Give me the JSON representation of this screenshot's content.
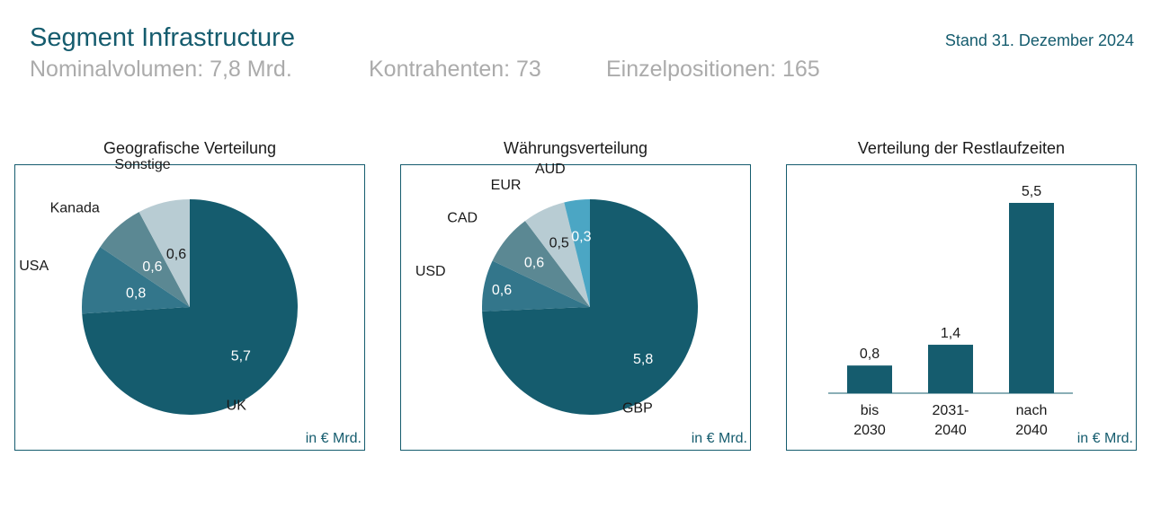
{
  "header": {
    "title": "Segment Infrastructure",
    "stand": "Stand 31. Dezember 2024",
    "nominal": "Nominalvolumen: 7,8 Mrd.",
    "kontrahenten": "Kontrahenten: 73",
    "einzelpositionen": "Einzelpositionen: 165"
  },
  "colors": {
    "accent": "#155c6e"
  },
  "chart_data": [
    {
      "type": "pie",
      "title": "Geografische Verteilung",
      "unit": "in € Mrd.",
      "slices": [
        {
          "label": "UK",
          "value": 5.7,
          "value_label": "5,7",
          "color": "#155c6e"
        },
        {
          "label": "USA",
          "value": 0.8,
          "value_label": "0,8",
          "color": "#33768b"
        },
        {
          "label": "Kanada",
          "value": 0.6,
          "value_label": "0,6",
          "color": "#5b8893"
        },
        {
          "label": "Sonstige",
          "value": 0.6,
          "value_label": "0,6",
          "color": "#b8ccd3"
        }
      ]
    },
    {
      "type": "pie",
      "title": "Währungsverteilung",
      "unit": "in € Mrd.",
      "slices": [
        {
          "label": "GBP",
          "value": 5.8,
          "value_label": "5,8",
          "color": "#155c6e"
        },
        {
          "label": "USD",
          "value": 0.6,
          "value_label": "0,6",
          "color": "#33768b"
        },
        {
          "label": "CAD",
          "value": 0.6,
          "value_label": "0,6",
          "color": "#5b8893"
        },
        {
          "label": "EUR",
          "value": 0.5,
          "value_label": "0,5",
          "color": "#b8ccd3"
        },
        {
          "label": "AUD",
          "value": 0.3,
          "value_label": "0,3",
          "color": "#4ba6c4"
        }
      ]
    },
    {
      "type": "bar",
      "title": "Verteilung der Restlaufzeiten",
      "unit": "in € Mrd.",
      "categories": [
        "bis\n2030",
        "2031-\n2040",
        "nach\n2040"
      ],
      "values": [
        0.8,
        1.4,
        5.5
      ],
      "value_labels": [
        "0,8",
        "1,4",
        "5,5"
      ],
      "color": "#155c6e"
    }
  ]
}
